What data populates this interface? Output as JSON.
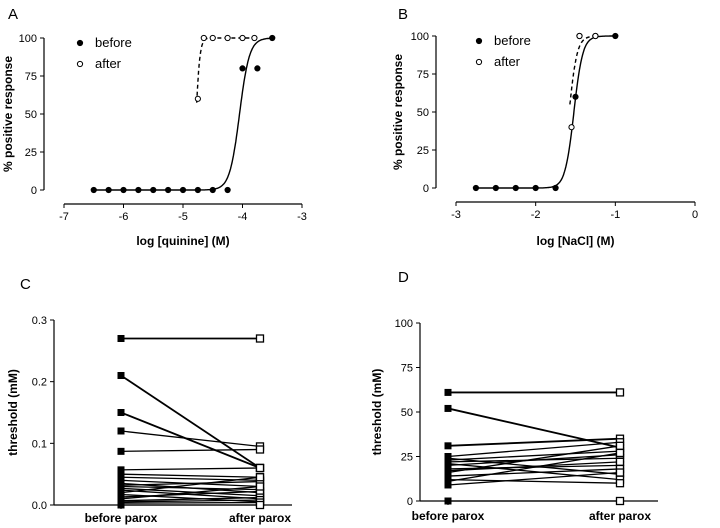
{
  "figure": {
    "panels": [
      "A",
      "B",
      "C",
      "D"
    ]
  },
  "chart_data": [
    {
      "panel": "A",
      "type": "scatter",
      "xlabel": "log [quinine] (M)",
      "ylabel": "% positive response",
      "xlim": [
        -7,
        -3
      ],
      "ylim": [
        0,
        100
      ],
      "xticks": [
        -7,
        -6,
        -5,
        -4,
        -3
      ],
      "yticks": [
        0,
        25,
        50,
        75,
        100
      ],
      "legend": [
        "before",
        "after"
      ],
      "legend_position": "top-left",
      "series": [
        {
          "name": "before",
          "marker": "filled-circle",
          "fit": "solid",
          "x": [
            -6.5,
            -6.25,
            -6.0,
            -5.75,
            -5.5,
            -5.25,
            -5.0,
            -4.75,
            -4.5,
            -4.25,
            -4.0,
            -3.75,
            -3.5
          ],
          "y": [
            0,
            0,
            0,
            0,
            0,
            0,
            0,
            0,
            0,
            0,
            80,
            80,
            100
          ],
          "fit_midpoint": -4.05,
          "fit_slope": 12
        },
        {
          "name": "after",
          "marker": "open-circle",
          "fit": "dashed",
          "x": [
            -4.75,
            -4.65,
            -4.5,
            -4.25,
            -4.0,
            -3.8
          ],
          "y": [
            60,
            100,
            100,
            100,
            100,
            100
          ],
          "fit_midpoint": -4.78,
          "fit_slope": 30
        }
      ]
    },
    {
      "panel": "B",
      "type": "scatter",
      "xlabel": "log [NaCl] (M)",
      "ylabel": "% positive response",
      "xlim": [
        -3,
        0
      ],
      "ylim": [
        0,
        100
      ],
      "xticks": [
        -3,
        -2,
        -1,
        0
      ],
      "yticks": [
        0,
        25,
        50,
        75,
        100
      ],
      "legend": [
        "before",
        "after"
      ],
      "legend_position": "top-right",
      "series": [
        {
          "name": "before",
          "marker": "filled-circle",
          "fit": "solid",
          "x": [
            -2.75,
            -2.5,
            -2.25,
            -2.0,
            -1.75,
            -1.5,
            -1.45,
            -1.25,
            -1.0
          ],
          "y": [
            0,
            0,
            0,
            0,
            0,
            60,
            100,
            100,
            100
          ],
          "fit_midpoint": -1.52,
          "fit_slope": 18
        },
        {
          "name": "after",
          "marker": "open-circle",
          "fit": "dashed",
          "x": [
            -1.55,
            -1.45,
            -1.25
          ],
          "y": [
            40,
            100,
            100
          ],
          "fit_midpoint": -1.58,
          "fit_slope": 20
        }
      ]
    },
    {
      "panel": "C",
      "type": "line",
      "xlabel": "",
      "ylabel": "threshold (mM)",
      "categories": [
        "before parox",
        "after parox"
      ],
      "ylim": [
        0,
        0.3
      ],
      "yticks": [
        0.0,
        0.1,
        0.2,
        0.3
      ],
      "pairs": [
        [
          0.27,
          0.27
        ],
        [
          0.21,
          0.06
        ],
        [
          0.15,
          0.06
        ],
        [
          0.12,
          0.095
        ],
        [
          0.087,
          0.09
        ],
        [
          0.057,
          0.06
        ],
        [
          0.05,
          0.045
        ],
        [
          0.045,
          0.04
        ],
        [
          0.04,
          0.03
        ],
        [
          0.035,
          0.02
        ],
        [
          0.032,
          0.038
        ],
        [
          0.03,
          0.025
        ],
        [
          0.027,
          0.015
        ],
        [
          0.024,
          0.01
        ],
        [
          0.02,
          0.045
        ],
        [
          0.017,
          0.005
        ],
        [
          0.013,
          0.022
        ],
        [
          0.01,
          0.03
        ],
        [
          0.007,
          0.012
        ],
        [
          0.005,
          0.008
        ],
        [
          0.003,
          0.004
        ],
        [
          0.0,
          0.0
        ]
      ]
    },
    {
      "panel": "D",
      "type": "line",
      "xlabel": "",
      "ylabel": "threshold (mM)",
      "categories": [
        "before parox",
        "after parox"
      ],
      "ylim": [
        0,
        100
      ],
      "yticks": [
        0,
        25,
        50,
        75,
        100
      ],
      "pairs": [
        [
          61,
          61
        ],
        [
          52,
          30
        ],
        [
          31,
          35
        ],
        [
          25,
          33
        ],
        [
          24,
          15
        ],
        [
          23,
          28
        ],
        [
          22,
          24
        ],
        [
          21,
          12
        ],
        [
          20,
          26
        ],
        [
          18,
          20
        ],
        [
          17,
          22
        ],
        [
          16,
          31
        ],
        [
          14,
          18
        ],
        [
          12,
          10
        ],
        [
          11,
          27
        ],
        [
          9,
          16
        ],
        [
          0,
          0
        ]
      ]
    }
  ]
}
